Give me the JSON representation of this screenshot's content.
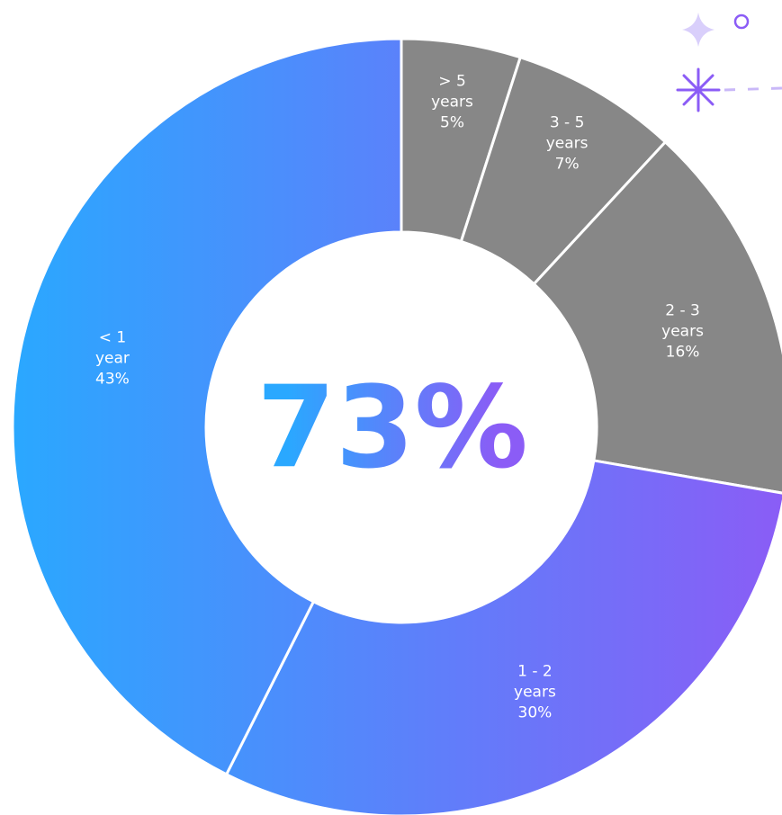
{
  "chart_data": {
    "type": "donut",
    "categories": [
      "> 5 years",
      "3 - 5 years",
      "2 - 3 years",
      "1 - 2 years",
      "< 1 year"
    ],
    "values": [
      5,
      7,
      16,
      30,
      43
    ],
    "value_labels": [
      "5%",
      "7%",
      "16%",
      "30%",
      "43%"
    ],
    "colors": [
      "#878787",
      "#878787",
      "#878787",
      null,
      null
    ],
    "gradient_colors": [
      "#2aa8ff",
      "#8b5cf6"
    ],
    "center_label": "73%"
  }
}
